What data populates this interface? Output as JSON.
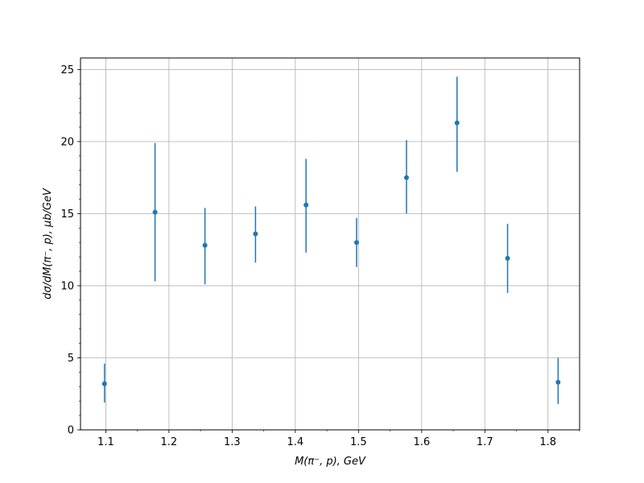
{
  "chart_data": {
    "type": "scatter",
    "xlabel": "M(π⁻, p), GeV",
    "ylabel": "dσ/dM(π⁻, p), μb/GeV",
    "xlim": [
      1.06,
      1.85
    ],
    "ylim": [
      0,
      25.8
    ],
    "xticks": [
      1.1,
      1.2,
      1.3,
      1.4,
      1.5,
      1.6,
      1.7,
      1.8
    ],
    "xtick_labels": [
      "1.1",
      "1.2",
      "1.3",
      "1.4",
      "1.5",
      "1.6",
      "1.7",
      "1.8"
    ],
    "yticks": [
      0,
      5,
      10,
      15,
      20,
      25
    ],
    "ytick_labels": [
      "0",
      "5",
      "10",
      "15",
      "20",
      "25"
    ],
    "x_minor_step": 0.05,
    "y_minor_step": 1,
    "grid": true,
    "series": [
      {
        "color": "#1f77b4",
        "points": [
          {
            "x": 1.098,
            "y": 3.2,
            "ylow": 1.9,
            "yhigh": 4.6
          },
          {
            "x": 1.178,
            "y": 15.1,
            "ylow": 10.3,
            "yhigh": 19.9
          },
          {
            "x": 1.257,
            "y": 12.8,
            "ylow": 10.1,
            "yhigh": 15.4
          },
          {
            "x": 1.337,
            "y": 13.6,
            "ylow": 11.6,
            "yhigh": 15.5
          },
          {
            "x": 1.417,
            "y": 15.6,
            "ylow": 12.3,
            "yhigh": 18.8
          },
          {
            "x": 1.497,
            "y": 13.0,
            "ylow": 11.3,
            "yhigh": 14.7
          },
          {
            "x": 1.576,
            "y": 17.5,
            "ylow": 15.0,
            "yhigh": 20.1
          },
          {
            "x": 1.656,
            "y": 21.3,
            "ylow": 17.9,
            "yhigh": 24.5
          },
          {
            "x": 1.736,
            "y": 11.9,
            "ylow": 9.5,
            "yhigh": 14.3
          },
          {
            "x": 1.816,
            "y": 3.3,
            "ylow": 1.8,
            "yhigh": 5.0
          }
        ]
      }
    ]
  }
}
